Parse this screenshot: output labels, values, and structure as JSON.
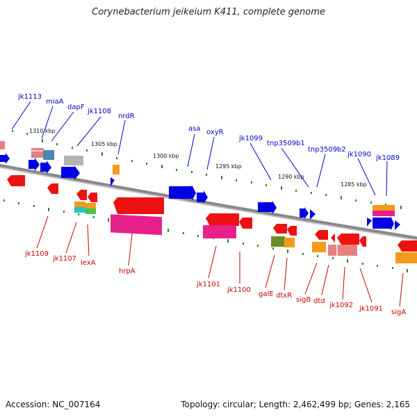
{
  "title": "Corynebacterium jeikeium K411, complete genome",
  "footer": {
    "accession": "Accession: NC_007164",
    "summary": "Topology: circular; Length: 2,462,499 bp; Genes: 2,165"
  },
  "scale_labels": [
    "1310 kbp",
    "1305 kbp",
    "1300 kbp",
    "1295 kbp",
    "1290 kbp",
    "1285 kbp"
  ],
  "upper_genes": [
    "jk1113",
    "miaA",
    "dapF",
    "jk1108",
    "nrdR",
    "asa",
    "oxyR",
    "jk1099",
    "tnp3509b1",
    "tnp3509b2",
    "jk1090",
    "jk1089"
  ],
  "lower_genes": [
    "jk1109",
    "jk1107",
    "lexA",
    "hrpA",
    "jk1101",
    "jk1100",
    "galE",
    "dtxR",
    "sigB",
    "dtd",
    "jk1092",
    "jk1091",
    "sigA"
  ],
  "colors": {
    "backbone": "#888888",
    "blue_label": "#0000c8",
    "red_label": "#c80000",
    "blue_gene": "#0000e6",
    "red_gene": "#ee1111",
    "magenta_gene": "#e8208c",
    "orange_gene": "#f39a1a",
    "olive_gene": "#6b8e23",
    "gray_gene": "#b4b4b4",
    "pink_gene": "#e88080",
    "teal_gene": "#4a86b0",
    "green_tick": "#1a8a1a"
  }
}
